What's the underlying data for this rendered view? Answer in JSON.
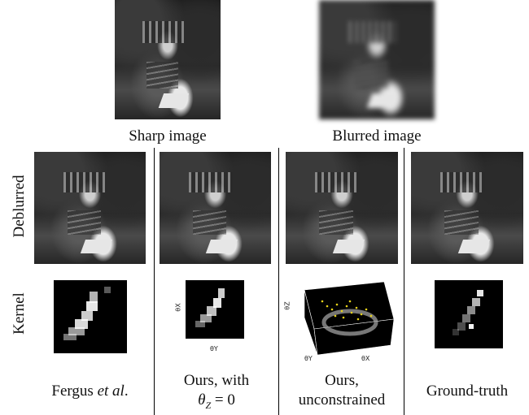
{
  "top": {
    "sharp_caption": "Sharp image",
    "blurred_caption": "Blurred image"
  },
  "rows": {
    "deblurred_label": "Deblurred",
    "kernel_label": "Kernel"
  },
  "columns": [
    {
      "caption_line1": "Fergus et al.",
      "caption_line2": ""
    },
    {
      "caption_line1": "Ours, with",
      "caption_line2": "θZ = 0"
    },
    {
      "caption_line1": "Ours,",
      "caption_line2": "unconstrained"
    },
    {
      "caption_line1": "Ground-truth",
      "caption_line2": ""
    }
  ],
  "kernel_axes": {
    "col2_y": "θX",
    "col2_x": "θY",
    "col3_z": "θZ",
    "col3_y": "θY",
    "col3_x": "θX"
  }
}
